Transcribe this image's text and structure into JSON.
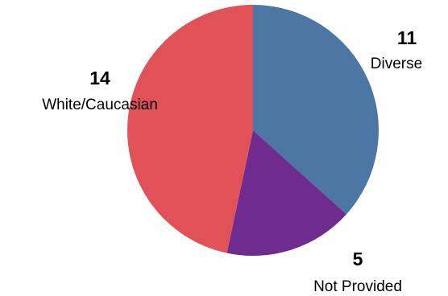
{
  "chart_data": {
    "type": "pie",
    "title": "",
    "legend": "none",
    "slices": [
      {
        "label": "Diverse",
        "value": 11,
        "color": "#4c77a4"
      },
      {
        "label": "Not Provided",
        "value": 5,
        "color": "#702b8e"
      },
      {
        "label": "White/Caucasian",
        "value": 14,
        "color": "#e05257"
      }
    ],
    "start_angle": "12 o'clock",
    "direction": "clockwise"
  }
}
